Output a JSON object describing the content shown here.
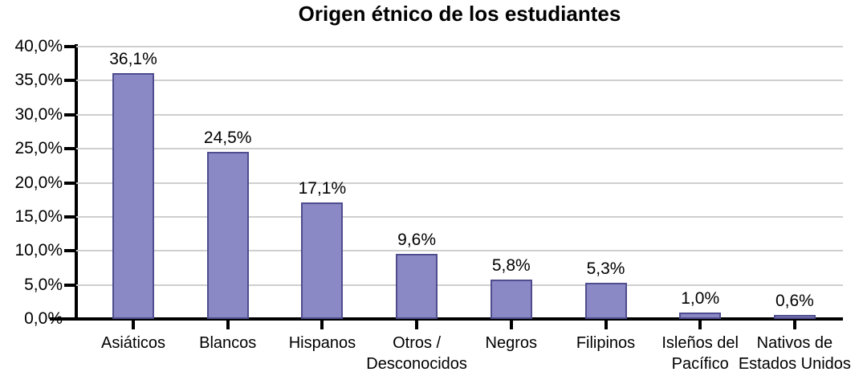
{
  "chart_data": {
    "type": "bar",
    "title": "Origen étnico de los estudiantes",
    "categories": [
      "Asiáticos",
      "Blancos",
      "Hispanos",
      "Otros /\nDesconocidos",
      "Negros",
      "Filipinos",
      "Isleños del\nPacífico",
      "Nativos de\nEstados Unidos"
    ],
    "values": [
      36.1,
      24.5,
      17.1,
      9.6,
      5.8,
      5.3,
      1.0,
      0.6
    ],
    "bar_value_labels": [
      "36,1%",
      "24,5%",
      "17,1%",
      "9,6%",
      "5,8%",
      "5,3%",
      "1,0%",
      "0,6%"
    ],
    "xlabel": "",
    "ylabel": "",
    "ylim": [
      0,
      40
    ],
    "y_tick_values": [
      0,
      5,
      10,
      15,
      20,
      25,
      30,
      35,
      40
    ],
    "y_tick_labels": [
      "0,0%",
      "5,0%",
      "10,0%",
      "15,0%",
      "20,0%",
      "25,0%",
      "30,0%",
      "35,0%",
      "40,0%"
    ],
    "grid": true,
    "legend_position": "none",
    "colors": {
      "bar_fill": "#8b88c6",
      "bar_border": "#4f4d8d",
      "grid_line": "#cfcfcf",
      "axis": "#000000",
      "text": "#000000"
    }
  }
}
